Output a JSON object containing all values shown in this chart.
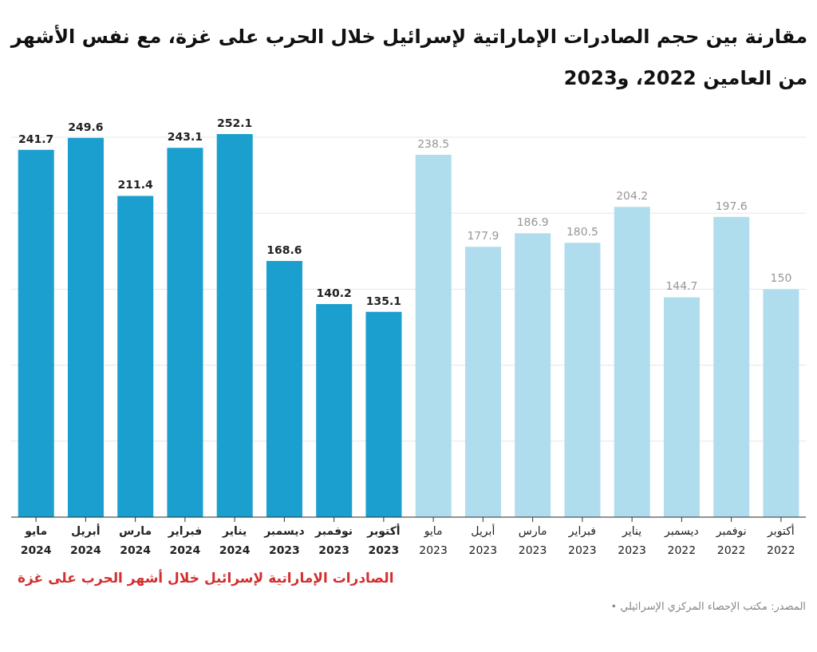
{
  "chart_data": {
    "type": "bar",
    "title": "مقارنة بين حجم الصادرات الإماراتية لإسرائيل خلال الحرب على غزة، مع نفس الأشهر من العامين 2022، و2023",
    "categories": [
      "مايو 2024",
      "أبريل 2024",
      "مارس 2024",
      "فبراير 2024",
      "يناير 2024",
      "ديسمبر 2023",
      "نوفمبر 2023",
      "أكتوبر 2023",
      "مايو 2023",
      "أبريل 2023",
      "مارس 2023",
      "فبراير 2023",
      "يناير 2023",
      "ديسمبر 2022",
      "نوفمبر 2022",
      "أكتوبر 2022"
    ],
    "values": [
      241.7,
      249.6,
      211.4,
      243.1,
      252.1,
      168.6,
      140.2,
      135.1,
      238.5,
      177.9,
      186.9,
      180.5,
      204.2,
      144.7,
      197.6,
      150
    ],
    "colors": [
      "#1a9fcf",
      "#1a9fcf",
      "#1a9fcf",
      "#1a9fcf",
      "#1a9fcf",
      "#1a9fcf",
      "#1a9fcf",
      "#1a9fcf",
      "#b0ddee",
      "#b0ddee",
      "#b0ddee",
      "#b0ddee",
      "#b0ddee",
      "#b0ddee",
      "#b0ddee",
      "#b0ddee"
    ],
    "data_labels": true,
    "yticks": [
      {
        "value": 0,
        "label": null
      },
      {
        "value": 50,
        "label": null
      },
      {
        "value": 100,
        "label": null
      },
      {
        "value": 150,
        "label": null
      },
      {
        "value": 200,
        "label": null
      },
      {
        "value": 250,
        "label": null
      }
    ],
    "grid": "y",
    "tick_labels": "x",
    "annotations": [
      "الصادرات الإماراتية لإسرائيل خلال أشهر الحرب على غزة",
      "المصدر: مكتب الإحصاء المركزي الإسرائيلي •"
    ]
  }
}
